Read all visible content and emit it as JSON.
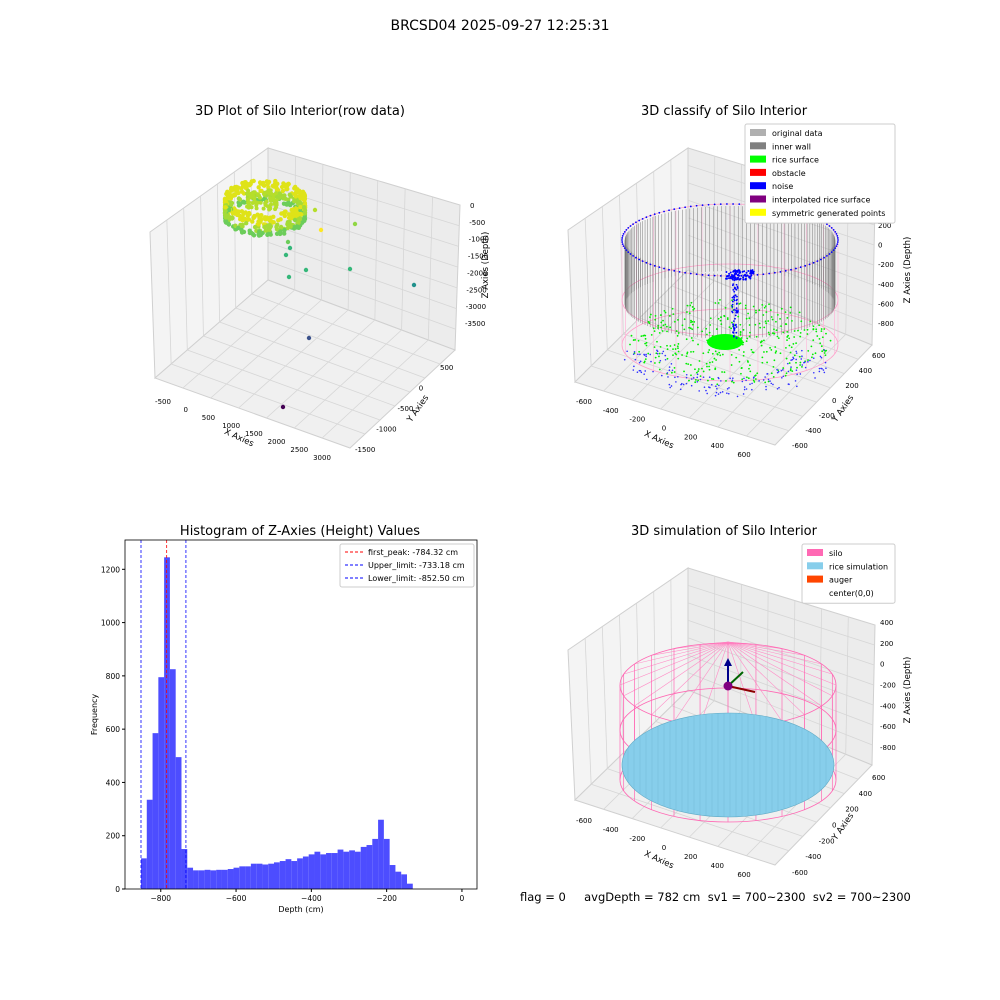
{
  "figure_title": "BRCSD04 2025-09-27 12:25:31",
  "footer_text": "flag = 0     avgDepth = 782 cm  sv1 = 700~2300  sv2 = 700~2300",
  "chart_data": [
    {
      "type": "scatter3d",
      "title": "3D Plot of Silo Interior(row data)",
      "xlabel": "X Axies",
      "ylabel": "Y Axies",
      "zlabel": "Z Axies (Depth)",
      "x_ticks": [
        "-500",
        "0",
        "500",
        "1000",
        "1500",
        "2000",
        "2500",
        "3000"
      ],
      "y_ticks": [
        "500",
        "0",
        "-500",
        "-1000",
        "-1500"
      ],
      "z_ticks": [
        "0",
        "-500",
        "-1000",
        "-1500",
        "-2000",
        "-2500",
        "-3000",
        "-3500"
      ],
      "colormap": "viridis",
      "grid": true
    },
    {
      "type": "scatter3d",
      "title": "3D classify of Silo Interior",
      "xlabel": "X Axies",
      "ylabel": "Y Axies",
      "zlabel": "Z Axies (Depth)",
      "x_ticks": [
        "-600",
        "-400",
        "-200",
        "0",
        "200",
        "400",
        "600"
      ],
      "y_ticks": [
        "600",
        "400",
        "200",
        "0",
        "-200",
        "-400",
        "-600"
      ],
      "z_ticks": [
        "200",
        "0",
        "-200",
        "-400",
        "-600",
        "-800"
      ],
      "legend_position": "top-right",
      "legend": [
        {
          "label": "original data",
          "color": "#b0b0b0"
        },
        {
          "label": "inner wall",
          "color": "#808080"
        },
        {
          "label": "rice surface",
          "color": "#00ff00"
        },
        {
          "label": "obstacle",
          "color": "#ff0000"
        },
        {
          "label": "noise",
          "color": "#0000ff"
        },
        {
          "label": "interpolated rice surface",
          "color": "#800080"
        },
        {
          "label": "symmetric generated points",
          "color": "#ffff00"
        }
      ]
    },
    {
      "type": "bar",
      "title": "Histogram of Z-Axies (Height) Values",
      "xlabel": "Depth (cm)",
      "ylabel": "Frequency",
      "xlim": [
        -895,
        40
      ],
      "ylim": [
        0,
        1310
      ],
      "x_ticks": [
        -800,
        -600,
        -400,
        -200,
        0
      ],
      "y_ticks": [
        0,
        200,
        400,
        600,
        800,
        1000,
        1200
      ],
      "bar_color": "#4d4dff",
      "bins_start": -852.5,
      "bin_width": 15.36,
      "values": [
        115,
        335,
        585,
        795,
        1245,
        825,
        495,
        150,
        80,
        70,
        70,
        72,
        70,
        72,
        72,
        75,
        80,
        85,
        85,
        95,
        95,
        92,
        95,
        100,
        105,
        112,
        105,
        115,
        122,
        130,
        140,
        130,
        135,
        135,
        148,
        140,
        145,
        140,
        158,
        165,
        188,
        260,
        188,
        90,
        65,
        55,
        20
      ],
      "vlines": [
        {
          "label": "first_peak: -784.32 cm",
          "x": -784.32,
          "color": "#ff0000"
        },
        {
          "label": "Upper_limit: -733.18 cm",
          "x": -733.18,
          "color": "#0000ff"
        },
        {
          "label": "Lower_limit: -852.50 cm",
          "x": -852.5,
          "color": "#0000ff"
        }
      ],
      "legend_position": "top-right"
    },
    {
      "type": "surface3d",
      "title": "3D simulation of Silo Interior",
      "xlabel": "X Axies",
      "ylabel": "Y Axies",
      "zlabel": "Z Axies (Depth)",
      "x_ticks": [
        "-600",
        "-400",
        "-200",
        "0",
        "200",
        "400",
        "600"
      ],
      "y_ticks": [
        "600",
        "400",
        "200",
        "0",
        "-200",
        "-400",
        "-600"
      ],
      "z_ticks": [
        "400",
        "200",
        "0",
        "-200",
        "-400",
        "-600",
        "-800"
      ],
      "legend_position": "top-right",
      "legend": [
        {
          "label": "silo",
          "color": "#ff69b4"
        },
        {
          "label": "rice simulation",
          "color": "#87ceeb"
        },
        {
          "label": "auger",
          "color": "#ff4500"
        },
        {
          "label": "center(0,0)",
          "color": ""
        }
      ]
    }
  ]
}
